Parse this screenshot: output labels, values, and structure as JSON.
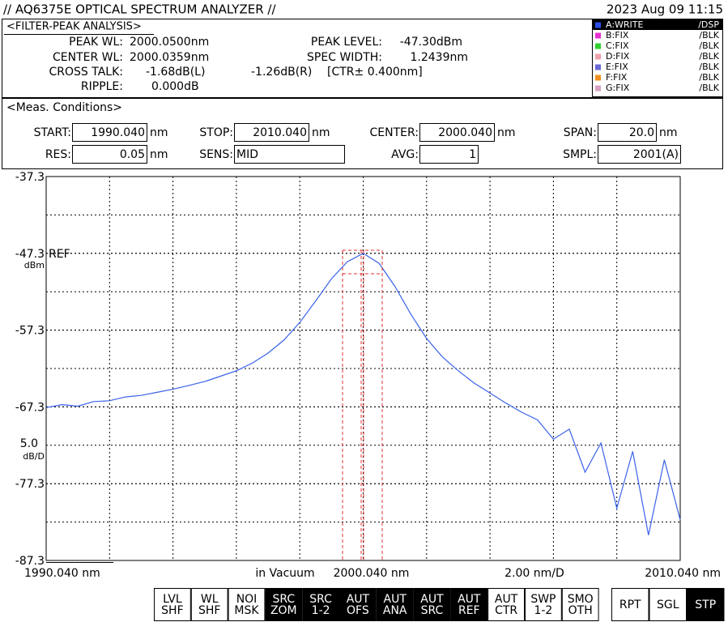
{
  "header": {
    "title": "// AQ6375E OPTICAL SPECTRUM ANALYZER //",
    "datetime": "2023 Aug 09 11:15"
  },
  "analysis": {
    "title": "<FILTER-PEAK ANALYSIS>",
    "peak_wl": {
      "label": "PEAK WL:",
      "value": "2000.0500nm"
    },
    "center_wl": {
      "label": "CENTER WL:",
      "value": "2000.0359nm"
    },
    "cross_talk": {
      "label": "CROSS TALK:",
      "left": "-1.68dB(L)",
      "right": "-1.26dB(R)",
      "range": "[CTR± 0.400nm]"
    },
    "ripple": {
      "label": "RIPPLE:",
      "value": "0.000dB"
    },
    "peak_level": {
      "label": "PEAK LEVEL:",
      "value": "-47.30dBm"
    },
    "spec_width": {
      "label": "SPEC WIDTH:",
      "value": "1.2439nm"
    }
  },
  "traces": [
    {
      "name": "A:WRITE",
      "state": "/DSP",
      "color": "#2a4fe8",
      "active": true
    },
    {
      "name": "B:FIX",
      "state": "/BLK",
      "color": "#e830d0"
    },
    {
      "name": "C:FIX",
      "state": "/BLK",
      "color": "#30d030"
    },
    {
      "name": "D:FIX",
      "state": "/BLK",
      "color": "#f0a0a8"
    },
    {
      "name": "E:FIX",
      "state": "/BLK",
      "color": "#6a6ad8"
    },
    {
      "name": "F:FIX",
      "state": "/BLK",
      "color": "#f09020"
    },
    {
      "name": "G:FIX",
      "state": "/BLK",
      "color": "#d8a0c0"
    }
  ],
  "conditions": {
    "title": "<Meas. Conditions>",
    "items": [
      {
        "label": "START:",
        "value": "1990.040",
        "unit": "nm"
      },
      {
        "label": "STOP:",
        "value": "2010.040",
        "unit": "nm"
      },
      {
        "label": "CENTER:",
        "value": "2000.040",
        "unit": "nm"
      },
      {
        "label": "SPAN:",
        "value": "20.0",
        "unit": "nm"
      },
      {
        "label": "RES:",
        "value": "0.05",
        "unit": "nm"
      },
      {
        "label": "SENS:",
        "value": "MID"
      },
      {
        "label": "AVG:",
        "value": "1"
      },
      {
        "label": "SMPL:",
        "value": "2001(A)"
      }
    ]
  },
  "chart_data": {
    "type": "line",
    "color": "#3a62ea",
    "x": [
      1990.04,
      1990.54,
      1991.04,
      1991.54,
      1992.04,
      1992.54,
      1993.04,
      1993.54,
      1994.04,
      1994.54,
      1995.04,
      1995.54,
      1996.04,
      1996.54,
      1997.04,
      1997.54,
      1998.04,
      1998.54,
      1999.04,
      1999.54,
      2000.04,
      2000.54,
      2001.04,
      2001.54,
      2002.04,
      2002.54,
      2003.04,
      2003.54,
      2004.04,
      2004.54,
      2005.04,
      2005.54,
      2006.04,
      2006.54,
      2007.04,
      2007.54,
      2008.04,
      2008.54,
      2009.04,
      2009.54,
      2010.04
    ],
    "values": [
      -67.4,
      -67.0,
      -67.2,
      -66.6,
      -66.5,
      -66.0,
      -65.8,
      -65.4,
      -65.0,
      -64.5,
      -64.0,
      -63.3,
      -62.6,
      -61.6,
      -60.3,
      -58.6,
      -56.3,
      -53.5,
      -50.6,
      -48.4,
      -47.3,
      -48.6,
      -51.6,
      -55.2,
      -58.4,
      -60.8,
      -62.6,
      -64.2,
      -65.5,
      -66.8,
      -68.0,
      -69.0,
      -71.5,
      -70.2,
      -75.8,
      -72.0,
      -80.5,
      -73.1,
      -84.0,
      -74.2,
      -82.0
    ],
    "xlim": [
      1990.04,
      2010.04
    ],
    "ylim": [
      -87.3,
      -37.3
    ],
    "xticks": [
      {
        "value": 1990.04,
        "label": "1990.040 nm"
      },
      {
        "value": 2000.04,
        "label": "2000.040 nm"
      },
      {
        "value": 2010.04,
        "label": "2010.040 nm"
      }
    ],
    "yticks": [
      -87.3,
      -77.3,
      -67.3,
      -57.3,
      -47.3,
      -37.3
    ],
    "grid": true,
    "ref_label": "REF",
    "level_unit": "dBm",
    "scale": "5.0",
    "scale_unit": "dB/D",
    "x_note": "in Vacuum",
    "x_scale": "2.00 nm/D"
  },
  "softkeys": [
    {
      "lines": [
        "LVL",
        "SHF"
      ]
    },
    {
      "lines": [
        "WL",
        "SHF"
      ]
    },
    {
      "lines": [
        "NOI",
        "MSK"
      ]
    },
    {
      "lines": [
        "SRC",
        "ZOM"
      ],
      "active": true
    },
    {
      "lines": [
        "SRC",
        "1-2"
      ],
      "active": true
    },
    {
      "lines": [
        "AUT",
        "OFS"
      ],
      "active": true
    },
    {
      "lines": [
        "AUT",
        "ANA"
      ],
      "active": true
    },
    {
      "lines": [
        "AUT",
        "SRC"
      ],
      "active": true
    },
    {
      "lines": [
        "AUT",
        "REF"
      ],
      "active": true
    },
    {
      "lines": [
        "AUT",
        "CTR"
      ]
    },
    {
      "lines": [
        "SWP",
        "1-2"
      ]
    },
    {
      "lines": [
        "SMO",
        "OTH"
      ]
    }
  ],
  "mode_keys": [
    {
      "lines": [
        "RPT"
      ]
    },
    {
      "lines": [
        "SGL"
      ]
    },
    {
      "lines": [
        "STP"
      ],
      "active": true
    }
  ]
}
